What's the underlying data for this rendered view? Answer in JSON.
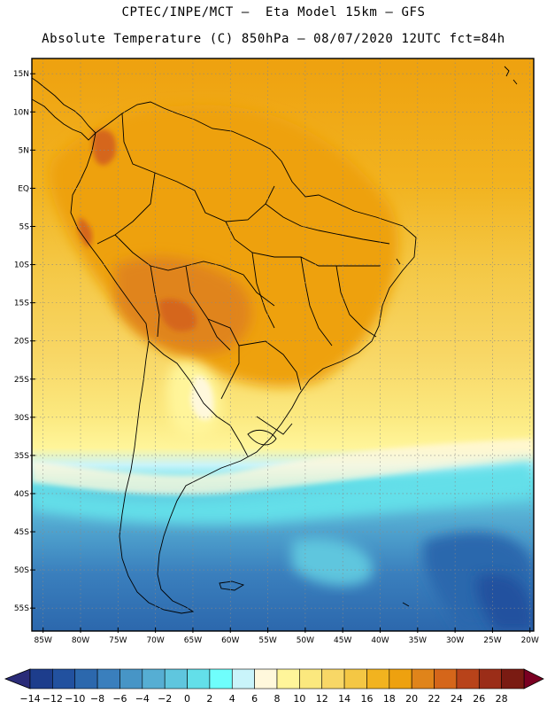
{
  "header": {
    "line1": "CPTEC/INPE/MCT –  Eta Model 15km – GFS",
    "line2": "Absolute Temperature (C) 850hPa – 08/07/2020 12UTC fct=84h"
  },
  "map": {
    "lat_labels": [
      "15N",
      "10N",
      "5N",
      "EQ",
      "5S",
      "10S",
      "15S",
      "20S",
      "25S",
      "30S",
      "35S",
      "40S",
      "45S",
      "50S",
      "55S"
    ],
    "lon_labels": [
      "85W",
      "80W",
      "75W",
      "70W",
      "65W",
      "60W",
      "55W",
      "50W",
      "45W",
      "40W",
      "35W",
      "30W",
      "25W",
      "20W"
    ],
    "extent": {
      "lon_min": -86.5,
      "lon_max": -19.5,
      "lat_min": -58,
      "lat_max": 17
    }
  },
  "colorbar": {
    "labels": [
      "-14",
      "-12",
      "-10",
      "-8",
      "-6",
      "-4",
      "-2",
      "0",
      "2",
      "4",
      "6",
      "8",
      "10",
      "12",
      "14",
      "16",
      "18",
      "20",
      "22",
      "24",
      "26",
      "28"
    ],
    "colors": [
      "#1d3d8c",
      "#22519f",
      "#2c68ad",
      "#3a7fbd",
      "#4795c6",
      "#56aed3",
      "#5fc6de",
      "#63dfe9",
      "#6ffefc",
      "#c9f4fa",
      "#fff8dc",
      "#fff59a",
      "#fbe87e",
      "#f8d766",
      "#f4c744",
      "#f2b31f",
      "#eea10f",
      "#e0841a",
      "#d5661a",
      "#b8431a",
      "#9b2d18",
      "#7a1b12"
    ],
    "under_color": "#2a2b78",
    "over_color": "#7a0022"
  }
}
